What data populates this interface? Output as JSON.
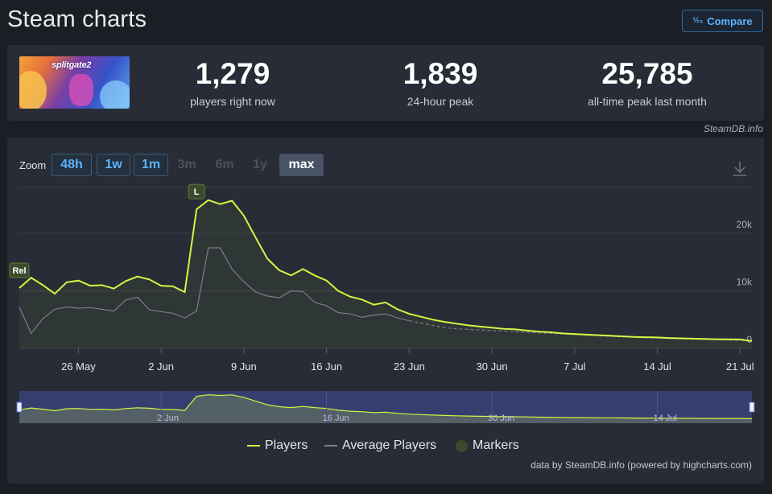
{
  "page": {
    "title": "Steam charts"
  },
  "compare_button": {
    "icon": "1/2 3",
    "label": "Compare"
  },
  "game": {
    "logo_text": "splitgate2"
  },
  "stats": [
    {
      "value": "1,279",
      "label": "players right now"
    },
    {
      "value": "1,839",
      "label": "24-hour peak"
    },
    {
      "value": "25,785",
      "label": "all-time peak last month"
    }
  ],
  "credit_top": "SteamDB.info",
  "zoom": {
    "label": "Zoom",
    "buttons": [
      {
        "label": "48h",
        "state": "active"
      },
      {
        "label": "1w",
        "state": "active"
      },
      {
        "label": "1m",
        "state": "active"
      },
      {
        "label": "3m",
        "state": "disabled"
      },
      {
        "label": "6m",
        "state": "disabled"
      },
      {
        "label": "1y",
        "state": "disabled"
      },
      {
        "label": "max",
        "state": "selected"
      }
    ]
  },
  "colors": {
    "players": "#d4f542",
    "average": "#7a7f88",
    "marker": "#3b4a2a",
    "accent": "#5cb4ff"
  },
  "chart_data": {
    "type": "line",
    "x_range": [
      "2025-05-21",
      "2025-07-22"
    ],
    "ylim": [
      0,
      28000
    ],
    "y_ticks": [
      0,
      10000,
      20000
    ],
    "y_tick_labels": [
      "0",
      "10k",
      "20k"
    ],
    "x_ticks": [
      "26 May",
      "2 Jun",
      "9 Jun",
      "16 Jun",
      "23 Jun",
      "30 Jun",
      "7 Jul",
      "14 Jul",
      "21 Jul"
    ],
    "x_tick_dates": [
      "2025-05-26",
      "2025-06-02",
      "2025-06-09",
      "2025-06-16",
      "2025-06-23",
      "2025-06-30",
      "2025-07-07",
      "2025-07-14",
      "2025-07-21"
    ],
    "grid": true,
    "series": [
      {
        "name": "Players",
        "x": [
          "2025-05-21",
          "2025-05-22",
          "2025-05-23",
          "2025-05-24",
          "2025-05-25",
          "2025-05-26",
          "2025-05-27",
          "2025-05-28",
          "2025-05-29",
          "2025-05-30",
          "2025-05-31",
          "2025-06-01",
          "2025-06-02",
          "2025-06-03",
          "2025-06-04",
          "2025-06-05",
          "2025-06-06",
          "2025-06-07",
          "2025-06-08",
          "2025-06-09",
          "2025-06-10",
          "2025-06-11",
          "2025-06-12",
          "2025-06-13",
          "2025-06-14",
          "2025-06-15",
          "2025-06-16",
          "2025-06-17",
          "2025-06-18",
          "2025-06-19",
          "2025-06-20",
          "2025-06-21",
          "2025-06-22",
          "2025-06-23",
          "2025-06-24",
          "2025-06-25",
          "2025-06-26",
          "2025-06-27",
          "2025-06-28",
          "2025-06-29",
          "2025-06-30",
          "2025-07-01",
          "2025-07-02",
          "2025-07-03",
          "2025-07-04",
          "2025-07-05",
          "2025-07-06",
          "2025-07-07",
          "2025-07-08",
          "2025-07-09",
          "2025-07-10",
          "2025-07-11",
          "2025-07-12",
          "2025-07-13",
          "2025-07-14",
          "2025-07-15",
          "2025-07-16",
          "2025-07-17",
          "2025-07-18",
          "2025-07-19",
          "2025-07-20",
          "2025-07-21",
          "2025-07-22"
        ],
        "values": [
          10500,
          12300,
          11000,
          9500,
          11500,
          11800,
          10900,
          11000,
          10400,
          11700,
          12500,
          12000,
          10900,
          10800,
          9800,
          24200,
          25800,
          25100,
          25700,
          23100,
          19300,
          15600,
          13600,
          12700,
          13800,
          12700,
          11800,
          10000,
          9000,
          8500,
          7600,
          8000,
          6800,
          6000,
          5500,
          5000,
          4600,
          4300,
          4000,
          3800,
          3600,
          3400,
          3300,
          3100,
          2900,
          2800,
          2600,
          2500,
          2400,
          2300,
          2200,
          2100,
          2000,
          1950,
          1900,
          1800,
          1750,
          1700,
          1650,
          1600,
          1580,
          1550,
          1279
        ]
      },
      {
        "name": "Average Players",
        "x": [
          "2025-05-21",
          "2025-05-22",
          "2025-05-23",
          "2025-05-24",
          "2025-05-25",
          "2025-05-26",
          "2025-05-27",
          "2025-05-28",
          "2025-05-29",
          "2025-05-30",
          "2025-05-31",
          "2025-06-01",
          "2025-06-02",
          "2025-06-03",
          "2025-06-04",
          "2025-06-05",
          "2025-06-06",
          "2025-06-07",
          "2025-06-08",
          "2025-06-09",
          "2025-06-10",
          "2025-06-11",
          "2025-06-12",
          "2025-06-13",
          "2025-06-14",
          "2025-06-15",
          "2025-06-16",
          "2025-06-17",
          "2025-06-18",
          "2025-06-19",
          "2025-06-20",
          "2025-06-21",
          "2025-06-22",
          "2025-06-23",
          "2025-06-24",
          "2025-06-25",
          "2025-06-26",
          "2025-06-27",
          "2025-06-28",
          "2025-06-29",
          "2025-06-30",
          "2025-07-01",
          "2025-07-02",
          "2025-07-03",
          "2025-07-04",
          "2025-07-05",
          "2025-07-06",
          "2025-07-07",
          "2025-07-08",
          "2025-07-09",
          "2025-07-10",
          "2025-07-11",
          "2025-07-12",
          "2025-07-13",
          "2025-07-14",
          "2025-07-15",
          "2025-07-16",
          "2025-07-17",
          "2025-07-18",
          "2025-07-19",
          "2025-07-20",
          "2025-07-21",
          "2025-07-22"
        ],
        "values": [
          7200,
          2600,
          5200,
          6800,
          7200,
          7000,
          7100,
          6800,
          6500,
          8400,
          8900,
          6700,
          6400,
          6100,
          5300,
          6500,
          17500,
          17500,
          13800,
          11600,
          9800,
          9100,
          8800,
          10000,
          9900,
          8000,
          7400,
          6200,
          6000,
          5400,
          5800,
          6000,
          5300,
          4800,
          4400,
          4000,
          3600,
          3400,
          3300,
          3200,
          3100,
          3000,
          2900,
          2800,
          2700,
          2600,
          2500,
          2400,
          2300,
          2200,
          2100,
          2000,
          1900,
          1850,
          1800,
          1700,
          1650,
          1600,
          1550,
          1500,
          1450,
          1400,
          1350
        ]
      }
    ],
    "markers": [
      {
        "label": "Rel",
        "x": "2025-05-21"
      },
      {
        "label": "L",
        "x": "2025-06-05"
      }
    ],
    "navigator_ticks": [
      "2 Jun",
      "16 Jun",
      "30 Jun",
      "14 Jul"
    ],
    "navigator_tick_dates": [
      "2025-06-02",
      "2025-06-16",
      "2025-06-30",
      "2025-07-14"
    ],
    "legend": [
      {
        "name": "Players",
        "type": "line"
      },
      {
        "name": "Average Players",
        "type": "line"
      },
      {
        "name": "Markers",
        "type": "dot"
      }
    ],
    "legend_position": "bottom-center"
  },
  "credit_bottom": "data by SteamDB.info (powered by highcharts.com)"
}
